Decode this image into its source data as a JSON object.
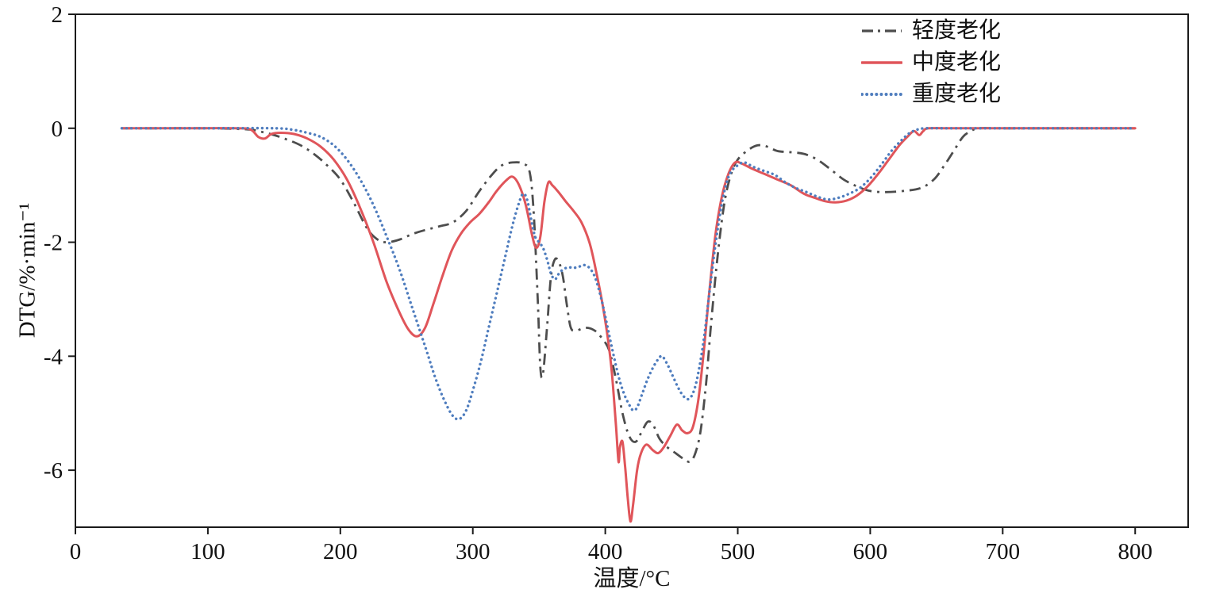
{
  "chart_data": {
    "type": "line",
    "title": "",
    "xlabel": "温度/°C",
    "ylabel": "DTG/%·min⁻¹",
    "xlim": [
      0,
      840
    ],
    "ylim": [
      -7,
      2
    ],
    "x_ticks": [
      0,
      100,
      200,
      300,
      400,
      500,
      600,
      700,
      800
    ],
    "y_ticks": [
      2,
      0,
      -2,
      -4,
      -6
    ],
    "grid": false,
    "legend_position": "top-right",
    "frame_color": "#1a1a1a",
    "series": [
      {
        "name": "轻度老化",
        "color": "#4d4d4d",
        "line_style": "dashdot",
        "dash": "14 7 3 7",
        "linecap": "butt",
        "width": 2.8,
        "points": [
          [
            35,
            0
          ],
          [
            60,
            0
          ],
          [
            100,
            0
          ],
          [
            130,
            -0.02
          ],
          [
            140,
            -0.06
          ],
          [
            150,
            -0.12
          ],
          [
            160,
            -0.2
          ],
          [
            170,
            -0.3
          ],
          [
            180,
            -0.45
          ],
          [
            190,
            -0.65
          ],
          [
            200,
            -0.9
          ],
          [
            210,
            -1.3
          ],
          [
            220,
            -1.75
          ],
          [
            228,
            -1.95
          ],
          [
            235,
            -2.0
          ],
          [
            245,
            -1.95
          ],
          [
            255,
            -1.85
          ],
          [
            265,
            -1.78
          ],
          [
            275,
            -1.72
          ],
          [
            285,
            -1.65
          ],
          [
            295,
            -1.45
          ],
          [
            305,
            -1.1
          ],
          [
            315,
            -0.8
          ],
          [
            322,
            -0.65
          ],
          [
            330,
            -0.6
          ],
          [
            338,
            -0.62
          ],
          [
            343,
            -0.78
          ],
          [
            346,
            -1.5
          ],
          [
            349,
            -3.0
          ],
          [
            351,
            -4.2
          ],
          [
            353,
            -4.3
          ],
          [
            356,
            -3.5
          ],
          [
            359,
            -2.6
          ],
          [
            362,
            -2.3
          ],
          [
            365,
            -2.35
          ],
          [
            368,
            -2.6
          ],
          [
            371,
            -3.1
          ],
          [
            374,
            -3.5
          ],
          [
            378,
            -3.55
          ],
          [
            385,
            -3.5
          ],
          [
            392,
            -3.55
          ],
          [
            398,
            -3.7
          ],
          [
            403,
            -3.9
          ],
          [
            408,
            -4.4
          ],
          [
            413,
            -5.0
          ],
          [
            418,
            -5.4
          ],
          [
            423,
            -5.5
          ],
          [
            428,
            -5.3
          ],
          [
            432,
            -5.15
          ],
          [
            436,
            -5.2
          ],
          [
            441,
            -5.45
          ],
          [
            447,
            -5.6
          ],
          [
            453,
            -5.7
          ],
          [
            459,
            -5.8
          ],
          [
            464,
            -5.85
          ],
          [
            468,
            -5.7
          ],
          [
            472,
            -5.3
          ],
          [
            476,
            -4.5
          ],
          [
            480,
            -3.4
          ],
          [
            485,
            -2.2
          ],
          [
            490,
            -1.3
          ],
          [
            495,
            -0.8
          ],
          [
            500,
            -0.55
          ],
          [
            508,
            -0.38
          ],
          [
            515,
            -0.3
          ],
          [
            522,
            -0.32
          ],
          [
            530,
            -0.4
          ],
          [
            540,
            -0.42
          ],
          [
            550,
            -0.45
          ],
          [
            560,
            -0.55
          ],
          [
            570,
            -0.72
          ],
          [
            580,
            -0.9
          ],
          [
            590,
            -1.02
          ],
          [
            600,
            -1.1
          ],
          [
            612,
            -1.12
          ],
          [
            625,
            -1.1
          ],
          [
            638,
            -1.05
          ],
          [
            648,
            -0.9
          ],
          [
            656,
            -0.65
          ],
          [
            663,
            -0.4
          ],
          [
            670,
            -0.15
          ],
          [
            676,
            -0.05
          ],
          [
            682,
            0
          ],
          [
            700,
            0
          ],
          [
            750,
            0
          ],
          [
            800,
            0
          ]
        ]
      },
      {
        "name": "中度老化",
        "color": "#e0555a",
        "line_style": "solid",
        "dash": "",
        "linecap": "round",
        "width": 3,
        "points": [
          [
            35,
            0
          ],
          [
            80,
            0
          ],
          [
            120,
            0
          ],
          [
            132,
            -0.02
          ],
          [
            138,
            -0.15
          ],
          [
            143,
            -0.18
          ],
          [
            148,
            -0.1
          ],
          [
            155,
            -0.08
          ],
          [
            165,
            -0.1
          ],
          [
            175,
            -0.18
          ],
          [
            185,
            -0.32
          ],
          [
            195,
            -0.55
          ],
          [
            205,
            -0.9
          ],
          [
            215,
            -1.4
          ],
          [
            225,
            -2.0
          ],
          [
            235,
            -2.7
          ],
          [
            245,
            -3.25
          ],
          [
            252,
            -3.55
          ],
          [
            258,
            -3.65
          ],
          [
            264,
            -3.5
          ],
          [
            270,
            -3.1
          ],
          [
            277,
            -2.6
          ],
          [
            284,
            -2.15
          ],
          [
            291,
            -1.85
          ],
          [
            298,
            -1.65
          ],
          [
            305,
            -1.5
          ],
          [
            312,
            -1.3
          ],
          [
            318,
            -1.1
          ],
          [
            325,
            -0.92
          ],
          [
            330,
            -0.85
          ],
          [
            335,
            -1.0
          ],
          [
            340,
            -1.35
          ],
          [
            345,
            -1.9
          ],
          [
            348,
            -2.1
          ],
          [
            351,
            -1.9
          ],
          [
            354,
            -1.3
          ],
          [
            357,
            -0.95
          ],
          [
            360,
            -1.0
          ],
          [
            364,
            -1.1
          ],
          [
            370,
            -1.28
          ],
          [
            376,
            -1.45
          ],
          [
            382,
            -1.65
          ],
          [
            388,
            -2.0
          ],
          [
            393,
            -2.5
          ],
          [
            398,
            -3.1
          ],
          [
            402,
            -3.7
          ],
          [
            405,
            -4.3
          ],
          [
            408,
            -5.2
          ],
          [
            410,
            -5.85
          ],
          [
            411,
            -5.6
          ],
          [
            413,
            -5.5
          ],
          [
            415,
            -5.95
          ],
          [
            417,
            -6.5
          ],
          [
            419,
            -6.9
          ],
          [
            421,
            -6.6
          ],
          [
            424,
            -6.0
          ],
          [
            427,
            -5.7
          ],
          [
            431,
            -5.55
          ],
          [
            436,
            -5.65
          ],
          [
            440,
            -5.7
          ],
          [
            444,
            -5.6
          ],
          [
            449,
            -5.4
          ],
          [
            454,
            -5.2
          ],
          [
            458,
            -5.3
          ],
          [
            462,
            -5.35
          ],
          [
            466,
            -5.25
          ],
          [
            470,
            -4.8
          ],
          [
            474,
            -4.0
          ],
          [
            478,
            -3.0
          ],
          [
            483,
            -1.9
          ],
          [
            488,
            -1.2
          ],
          [
            493,
            -0.8
          ],
          [
            498,
            -0.6
          ],
          [
            503,
            -0.62
          ],
          [
            510,
            -0.7
          ],
          [
            520,
            -0.8
          ],
          [
            530,
            -0.9
          ],
          [
            540,
            -1.0
          ],
          [
            550,
            -1.15
          ],
          [
            558,
            -1.22
          ],
          [
            566,
            -1.28
          ],
          [
            574,
            -1.3
          ],
          [
            582,
            -1.27
          ],
          [
            590,
            -1.18
          ],
          [
            598,
            -1.02
          ],
          [
            606,
            -0.8
          ],
          [
            614,
            -0.55
          ],
          [
            622,
            -0.3
          ],
          [
            628,
            -0.15
          ],
          [
            633,
            -0.05
          ],
          [
            637,
            -0.12
          ],
          [
            640,
            -0.05
          ],
          [
            644,
            0
          ],
          [
            660,
            0
          ],
          [
            700,
            0
          ],
          [
            800,
            0
          ]
        ]
      },
      {
        "name": "重度老化",
        "color": "#4f7dbe",
        "line_style": "dotted",
        "dash": "0.1 6",
        "linecap": "round",
        "width": 3.4,
        "points": [
          [
            35,
            0
          ],
          [
            100,
            0
          ],
          [
            150,
            0
          ],
          [
            165,
            -0.03
          ],
          [
            175,
            -0.08
          ],
          [
            185,
            -0.15
          ],
          [
            195,
            -0.3
          ],
          [
            205,
            -0.55
          ],
          [
            215,
            -0.9
          ],
          [
            225,
            -1.35
          ],
          [
            235,
            -1.9
          ],
          [
            245,
            -2.5
          ],
          [
            255,
            -3.2
          ],
          [
            265,
            -3.9
          ],
          [
            272,
            -4.4
          ],
          [
            279,
            -4.8
          ],
          [
            285,
            -5.05
          ],
          [
            290,
            -5.1
          ],
          [
            295,
            -4.95
          ],
          [
            300,
            -4.6
          ],
          [
            306,
            -4.1
          ],
          [
            312,
            -3.5
          ],
          [
            318,
            -2.9
          ],
          [
            324,
            -2.3
          ],
          [
            330,
            -1.7
          ],
          [
            335,
            -1.3
          ],
          [
            338,
            -1.15
          ],
          [
            341,
            -1.25
          ],
          [
            344,
            -1.6
          ],
          [
            347,
            -1.9
          ],
          [
            350,
            -2.0
          ],
          [
            353,
            -2.1
          ],
          [
            356,
            -2.3
          ],
          [
            359,
            -2.55
          ],
          [
            362,
            -2.65
          ],
          [
            365,
            -2.55
          ],
          [
            368,
            -2.48
          ],
          [
            372,
            -2.44
          ],
          [
            376,
            -2.45
          ],
          [
            380,
            -2.43
          ],
          [
            384,
            -2.4
          ],
          [
            388,
            -2.45
          ],
          [
            392,
            -2.6
          ],
          [
            396,
            -2.9
          ],
          [
            400,
            -3.3
          ],
          [
            405,
            -3.85
          ],
          [
            410,
            -4.35
          ],
          [
            414,
            -4.65
          ],
          [
            418,
            -4.85
          ],
          [
            421,
            -4.95
          ],
          [
            424,
            -4.9
          ],
          [
            428,
            -4.65
          ],
          [
            432,
            -4.4
          ],
          [
            436,
            -4.2
          ],
          [
            440,
            -4.05
          ],
          [
            443,
            -4.0
          ],
          [
            447,
            -4.15
          ],
          [
            451,
            -4.35
          ],
          [
            455,
            -4.55
          ],
          [
            459,
            -4.7
          ],
          [
            463,
            -4.75
          ],
          [
            467,
            -4.6
          ],
          [
            471,
            -4.2
          ],
          [
            475,
            -3.6
          ],
          [
            479,
            -2.8
          ],
          [
            484,
            -1.9
          ],
          [
            489,
            -1.2
          ],
          [
            494,
            -0.8
          ],
          [
            500,
            -0.65
          ],
          [
            505,
            -0.6
          ],
          [
            512,
            -0.68
          ],
          [
            520,
            -0.75
          ],
          [
            528,
            -0.82
          ],
          [
            536,
            -0.95
          ],
          [
            544,
            -1.05
          ],
          [
            552,
            -1.12
          ],
          [
            560,
            -1.2
          ],
          [
            568,
            -1.25
          ],
          [
            576,
            -1.22
          ],
          [
            584,
            -1.15
          ],
          [
            592,
            -1.05
          ],
          [
            600,
            -0.88
          ],
          [
            608,
            -0.65
          ],
          [
            616,
            -0.4
          ],
          [
            624,
            -0.2
          ],
          [
            630,
            -0.08
          ],
          [
            636,
            -0.02
          ],
          [
            642,
            0
          ],
          [
            660,
            0
          ],
          [
            700,
            0
          ],
          [
            800,
            0
          ]
        ]
      }
    ]
  }
}
